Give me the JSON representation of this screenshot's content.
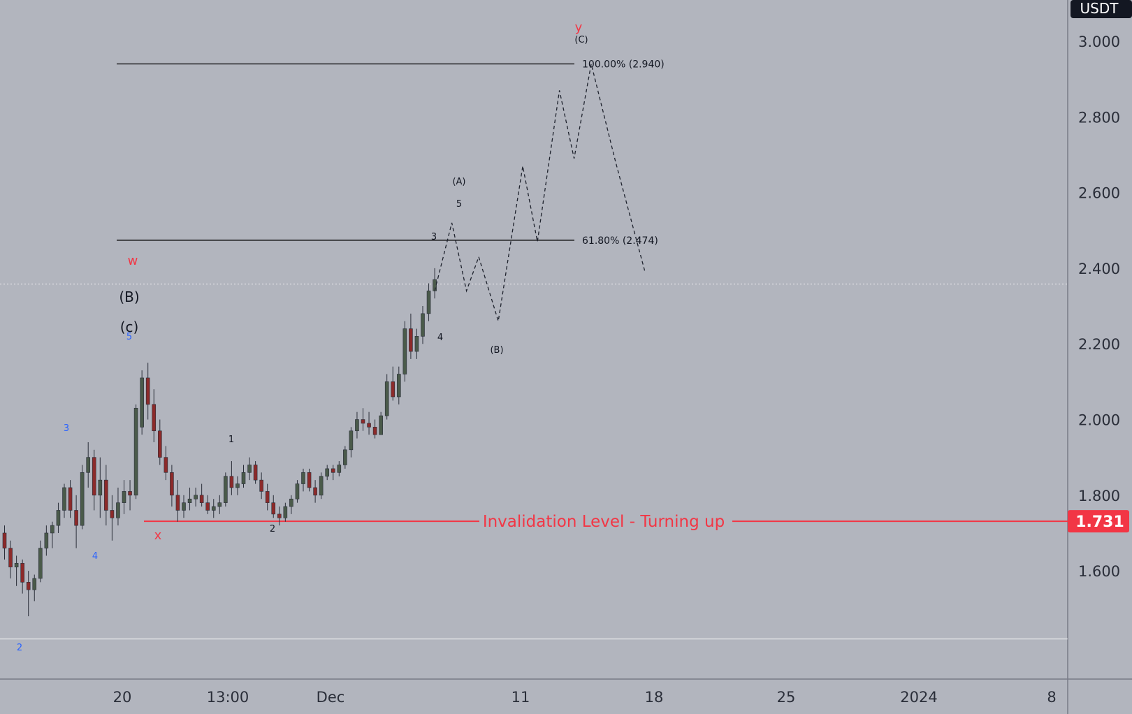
{
  "header": {
    "currency": "USDT"
  },
  "chart_data": {
    "type": "candlestick",
    "title": "",
    "xlabel": "",
    "ylabel": "",
    "ylim": [
      1.35,
      3.1
    ],
    "price_axis_ticks": [
      "3.000",
      "2.800",
      "2.600",
      "2.400",
      "2.200",
      "2.000",
      "1.800",
      "1.600"
    ],
    "time_axis_ticks": [
      "20",
      "13:00",
      "Dec",
      "11",
      "18",
      "25",
      "2024",
      "8"
    ],
    "price_tags": [
      {
        "value": "1.731",
        "color": "#f23645"
      }
    ],
    "crosshair_price": 2.358,
    "grid": false,
    "candles": [
      [
        1.7,
        1.72,
        1.63,
        1.66
      ],
      [
        1.66,
        1.68,
        1.58,
        1.61
      ],
      [
        1.61,
        1.64,
        1.56,
        1.62
      ],
      [
        1.62,
        1.63,
        1.54,
        1.57
      ],
      [
        1.57,
        1.6,
        1.48,
        1.55
      ],
      [
        1.55,
        1.59,
        1.52,
        1.58
      ],
      [
        1.58,
        1.68,
        1.57,
        1.66
      ],
      [
        1.66,
        1.72,
        1.64,
        1.7
      ],
      [
        1.7,
        1.73,
        1.66,
        1.72
      ],
      [
        1.72,
        1.78,
        1.7,
        1.76
      ],
      [
        1.76,
        1.83,
        1.74,
        1.82
      ],
      [
        1.82,
        1.84,
        1.74,
        1.76
      ],
      [
        1.76,
        1.8,
        1.66,
        1.72
      ],
      [
        1.72,
        1.88,
        1.71,
        1.86
      ],
      [
        1.86,
        1.94,
        1.82,
        1.9
      ],
      [
        1.9,
        1.92,
        1.76,
        1.8
      ],
      [
        1.8,
        1.9,
        1.74,
        1.84
      ],
      [
        1.84,
        1.88,
        1.72,
        1.76
      ],
      [
        1.76,
        1.8,
        1.68,
        1.74
      ],
      [
        1.74,
        1.82,
        1.72,
        1.78
      ],
      [
        1.78,
        1.84,
        1.75,
        1.81
      ],
      [
        1.81,
        1.84,
        1.76,
        1.8
      ],
      [
        1.8,
        2.04,
        1.79,
        2.03
      ],
      [
        1.98,
        2.13,
        1.96,
        2.11
      ],
      [
        2.11,
        2.15,
        2.0,
        2.04
      ],
      [
        2.04,
        2.08,
        1.94,
        1.97
      ],
      [
        1.97,
        2.0,
        1.88,
        1.9
      ],
      [
        1.9,
        1.93,
        1.84,
        1.86
      ],
      [
        1.86,
        1.88,
        1.77,
        1.8
      ],
      [
        1.8,
        1.84,
        1.73,
        1.76
      ],
      [
        1.76,
        1.8,
        1.74,
        1.78
      ],
      [
        1.78,
        1.82,
        1.76,
        1.79
      ],
      [
        1.79,
        1.82,
        1.77,
        1.8
      ],
      [
        1.8,
        1.83,
        1.77,
        1.78
      ],
      [
        1.78,
        1.8,
        1.75,
        1.76
      ],
      [
        1.76,
        1.79,
        1.74,
        1.77
      ],
      [
        1.77,
        1.8,
        1.75,
        1.78
      ],
      [
        1.78,
        1.86,
        1.77,
        1.85
      ],
      [
        1.85,
        1.89,
        1.8,
        1.82
      ],
      [
        1.82,
        1.85,
        1.8,
        1.83
      ],
      [
        1.83,
        1.88,
        1.82,
        1.86
      ],
      [
        1.86,
        1.9,
        1.84,
        1.88
      ],
      [
        1.88,
        1.89,
        1.83,
        1.84
      ],
      [
        1.84,
        1.86,
        1.79,
        1.81
      ],
      [
        1.81,
        1.83,
        1.76,
        1.78
      ],
      [
        1.78,
        1.8,
        1.74,
        1.75
      ],
      [
        1.75,
        1.77,
        1.72,
        1.74
      ],
      [
        1.74,
        1.78,
        1.73,
        1.77
      ],
      [
        1.77,
        1.8,
        1.75,
        1.79
      ],
      [
        1.79,
        1.84,
        1.78,
        1.83
      ],
      [
        1.83,
        1.87,
        1.81,
        1.86
      ],
      [
        1.86,
        1.87,
        1.81,
        1.82
      ],
      [
        1.82,
        1.84,
        1.78,
        1.8
      ],
      [
        1.8,
        1.86,
        1.79,
        1.85
      ],
      [
        1.85,
        1.88,
        1.84,
        1.87
      ],
      [
        1.87,
        1.88,
        1.84,
        1.86
      ],
      [
        1.86,
        1.89,
        1.85,
        1.88
      ],
      [
        1.88,
        1.93,
        1.87,
        1.92
      ],
      [
        1.92,
        1.98,
        1.9,
        1.97
      ],
      [
        1.97,
        2.02,
        1.95,
        2.0
      ],
      [
        2.0,
        2.03,
        1.97,
        1.99
      ],
      [
        1.99,
        2.02,
        1.96,
        1.98
      ],
      [
        1.98,
        2.0,
        1.95,
        1.96
      ],
      [
        1.96,
        2.02,
        1.96,
        2.01
      ],
      [
        2.01,
        2.12,
        2.0,
        2.1
      ],
      [
        2.1,
        2.14,
        2.05,
        2.06
      ],
      [
        2.06,
        2.14,
        2.04,
        2.12
      ],
      [
        2.12,
        2.26,
        2.1,
        2.24
      ],
      [
        2.24,
        2.28,
        2.16,
        2.18
      ],
      [
        2.18,
        2.24,
        2.16,
        2.22
      ],
      [
        2.22,
        2.3,
        2.2,
        2.28
      ],
      [
        2.28,
        2.36,
        2.26,
        2.34
      ],
      [
        2.34,
        2.4,
        2.32,
        2.37
      ]
    ],
    "projection_path": [
      [
        0,
        2.34
      ],
      [
        3.5,
        2.52
      ],
      [
        6.5,
        2.34
      ],
      [
        9,
        2.43
      ],
      [
        13,
        2.26
      ],
      [
        18,
        2.67
      ],
      [
        21,
        2.47
      ],
      [
        25.5,
        2.87
      ],
      [
        28.5,
        2.69
      ],
      [
        32,
        2.94
      ],
      [
        37,
        2.68
      ],
      [
        43,
        2.39
      ]
    ],
    "horizontal_levels": [
      {
        "label": "100.00% (2.940)",
        "value": 2.94,
        "color": "#000000"
      },
      {
        "label": "61.80% (2.474)",
        "value": 2.474,
        "color": "#000000"
      },
      {
        "label": "Invalidation Level - Turning up",
        "value": 1.731,
        "color": "#f23645"
      },
      {
        "label": "",
        "value": 1.42,
        "color": "#ffffff"
      }
    ],
    "annotations": [
      {
        "text": "y",
        "color": "#f23645",
        "size": "normal"
      },
      {
        "text": "(C)",
        "color": "#131722",
        "size": "small"
      },
      {
        "text": "(A)",
        "color": "#131722",
        "size": "small"
      },
      {
        "text": "5",
        "color": "#131722",
        "size": "small"
      },
      {
        "text": "3",
        "color": "#131722",
        "size": "small"
      },
      {
        "text": "4",
        "color": "#131722",
        "size": "small"
      },
      {
        "text": "(B)",
        "color": "#131722",
        "size": "small"
      },
      {
        "text": "w",
        "color": "#f23645",
        "size": "normal"
      },
      {
        "text": "(B)",
        "color": "#131722",
        "size": "large"
      },
      {
        "text": "(c)",
        "color": "#131722",
        "size": "large"
      },
      {
        "text": "5",
        "color": "#2962ff",
        "size": "small"
      },
      {
        "text": "3",
        "color": "#2962ff",
        "size": "small"
      },
      {
        "text": "4",
        "color": "#2962ff",
        "size": "small"
      },
      {
        "text": "2",
        "color": "#2962ff",
        "size": "small"
      },
      {
        "text": "1",
        "color": "#131722",
        "size": "small"
      },
      {
        "text": "2",
        "color": "#131722",
        "size": "small"
      },
      {
        "text": "x",
        "color": "#f23645",
        "size": "normal"
      }
    ],
    "colors": {
      "background": "#b2b5be",
      "up": "#4a5a4a",
      "down": "#8c2a2a",
      "invalidation": "#f23645"
    }
  }
}
